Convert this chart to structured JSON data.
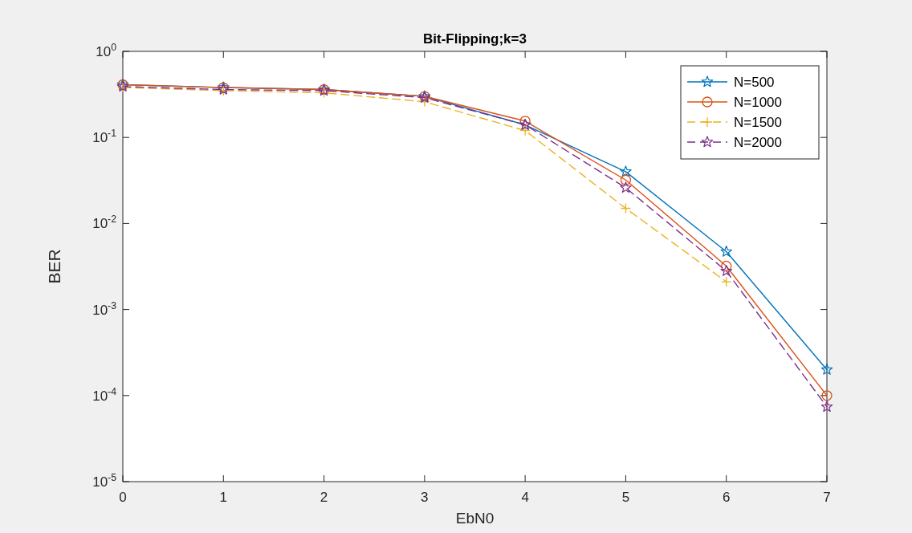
{
  "chart_data": {
    "type": "line",
    "title": "Bit-Flipping;k=3",
    "xlabel": "EbN0",
    "ylabel": "BER",
    "log": "y",
    "x": [
      0,
      1,
      2,
      3,
      4,
      5,
      6,
      7
    ],
    "xlim": [
      0,
      7
    ],
    "xticks": [
      0,
      1,
      2,
      3,
      4,
      5,
      6,
      7
    ],
    "ylim": [
      1e-05,
      1
    ],
    "yticks": [
      {
        "value": 1e-05,
        "label": "10$^{-5}$"
      },
      {
        "value": 0.0001,
        "label": "10$^{-4}$"
      },
      {
        "value": 0.001,
        "label": "10$^{-3}$"
      },
      {
        "value": 0.01,
        "label": "10$^{-2}$"
      },
      {
        "value": 0.1,
        "label": "10$^{-1}$"
      },
      {
        "value": 1,
        "label": "10$^{0}$"
      }
    ],
    "legend": "top right",
    "grid": false,
    "series": [
      {
        "name": "N=500",
        "color": "#0072bd",
        "marker": "star",
        "line_style": "solid",
        "values": [
          0.41,
          0.38,
          0.36,
          0.3,
          0.14,
          0.04,
          0.0047,
          0.0002
        ]
      },
      {
        "name": "N=1000",
        "color": "#d95319",
        "marker": "circle",
        "line_style": "solid",
        "values": [
          0.41,
          0.38,
          0.36,
          0.3,
          0.155,
          0.032,
          0.0032,
          0.0001
        ]
      },
      {
        "name": "N=1500",
        "color": "#edb120",
        "marker": "cross",
        "line_style": "dashed",
        "values": [
          0.38,
          0.35,
          0.33,
          0.26,
          0.12,
          0.015,
          0.0021,
          null
        ]
      },
      {
        "name": "N=2000",
        "color": "#7e2f8e",
        "marker": "star",
        "line_style": "dashed",
        "values": [
          0.39,
          0.36,
          0.35,
          0.29,
          0.14,
          0.026,
          0.0028,
          7.4e-05
        ]
      }
    ]
  }
}
